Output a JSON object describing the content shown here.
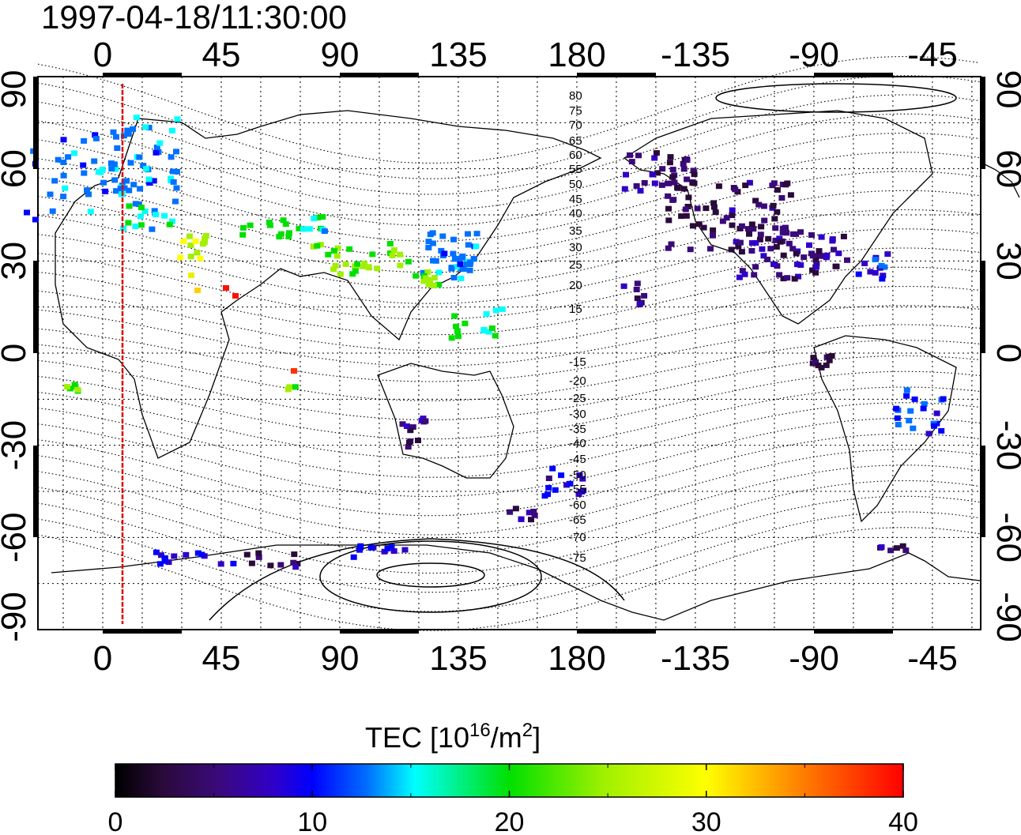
{
  "title": "1997-04-18/11:30:00",
  "map": {
    "top_lon_labels": [
      "0",
      "45",
      "90",
      "135",
      "180",
      "-135",
      "-90",
      "-45"
    ],
    "bottom_lon_labels": [
      "0",
      "45",
      "90",
      "135",
      "180",
      "-135",
      "-90",
      "-45"
    ],
    "left_lat_labels": [
      "90",
      "60",
      "30",
      "0",
      "-30",
      "-60",
      "-90"
    ],
    "right_lat_labels": [
      "90",
      "60",
      "30",
      "0",
      "-30",
      "-60",
      "-90"
    ],
    "contour_labels": [
      "80",
      "75",
      "70",
      "65",
      "60",
      "55",
      "50",
      "45",
      "40",
      "35",
      "30",
      "25",
      "20",
      "15",
      "-15",
      "-20",
      "-25",
      "-30",
      "-35",
      "-40",
      "-45",
      "-50",
      "-55",
      "-60",
      "-65",
      "-70",
      "-75"
    ],
    "terminator_color": "#dd0000"
  },
  "colorbar": {
    "title_prefix": "TEC  [10",
    "title_sup1": "16",
    "title_mid": "/m",
    "title_sup2": "2",
    "title_suffix": "]",
    "tick_labels": [
      "0",
      "10",
      "20",
      "30",
      "40"
    ],
    "range": [
      0,
      40
    ]
  }
}
